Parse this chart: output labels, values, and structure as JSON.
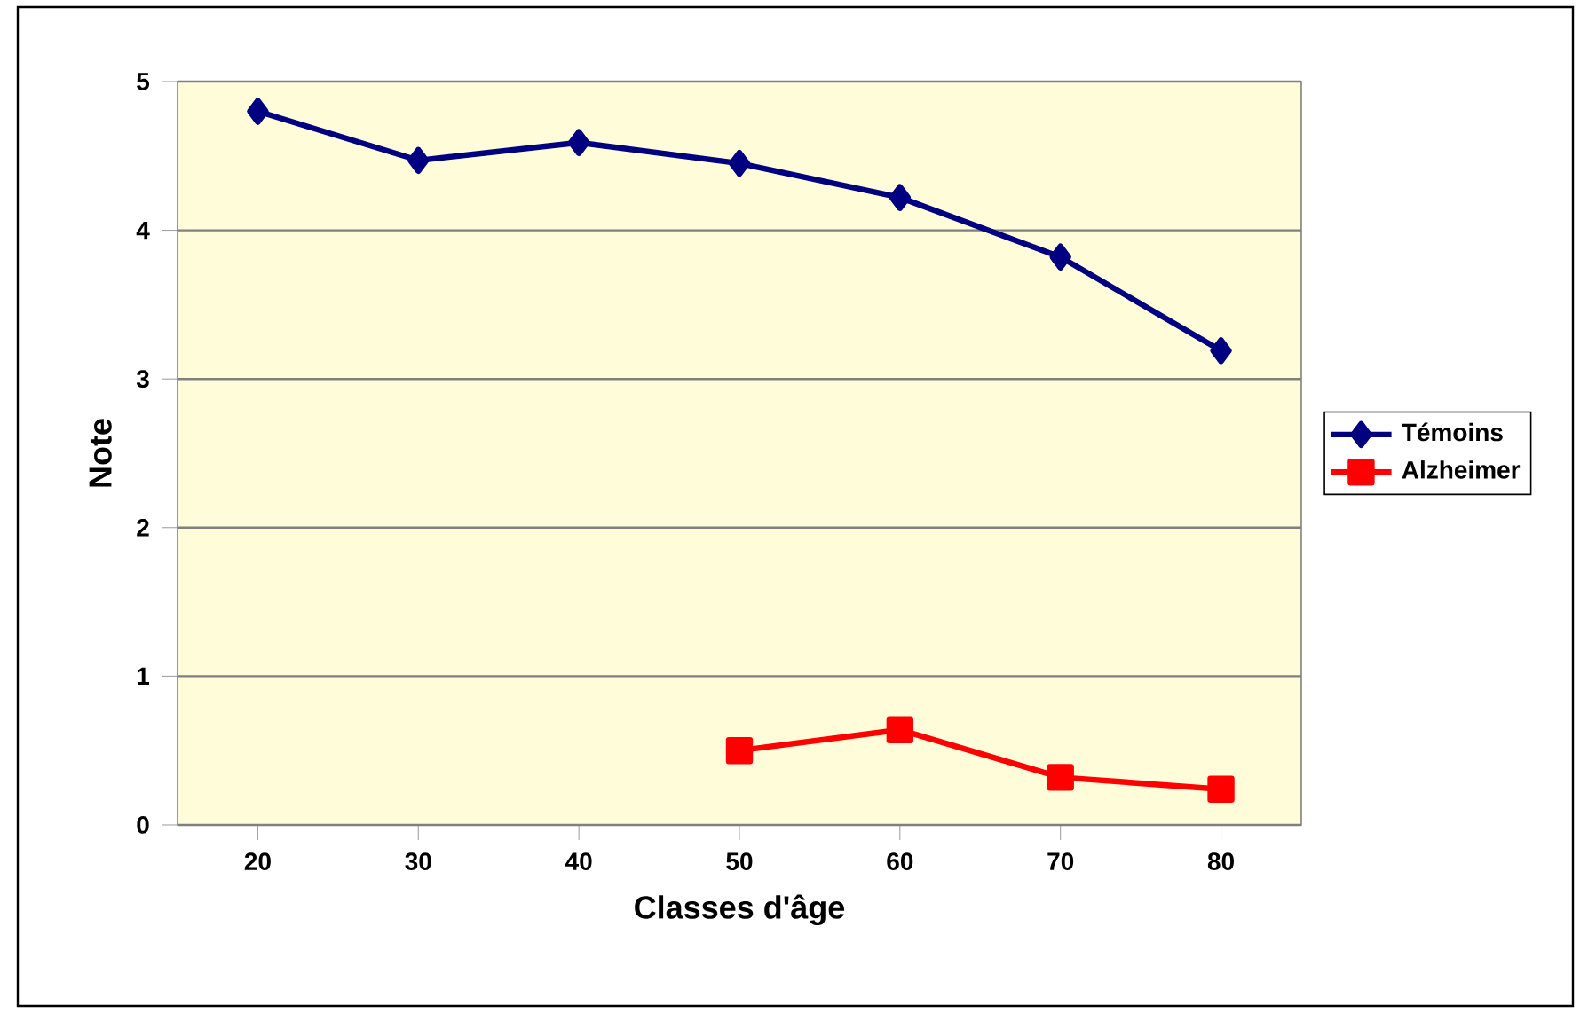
{
  "chart_data": {
    "type": "line",
    "xlabel": "Classes d'âge",
    "ylabel": "Note",
    "categories": [
      "20",
      "30",
      "40",
      "50",
      "60",
      "70",
      "80"
    ],
    "series": [
      {
        "name": "Témoins",
        "color": "#000080",
        "marker": "diamond",
        "values": [
          4.8,
          4.47,
          4.59,
          4.45,
          4.22,
          3.82,
          3.19
        ]
      },
      {
        "name": "Alzheimer",
        "color": "#ff0000",
        "marker": "square",
        "values": [
          null,
          null,
          null,
          0.5,
          0.64,
          0.32,
          0.24
        ]
      }
    ],
    "ylim": [
      0,
      5
    ],
    "yticks": [
      0,
      1,
      2,
      3,
      4,
      5
    ],
    "grid": "y",
    "legend": "right"
  }
}
